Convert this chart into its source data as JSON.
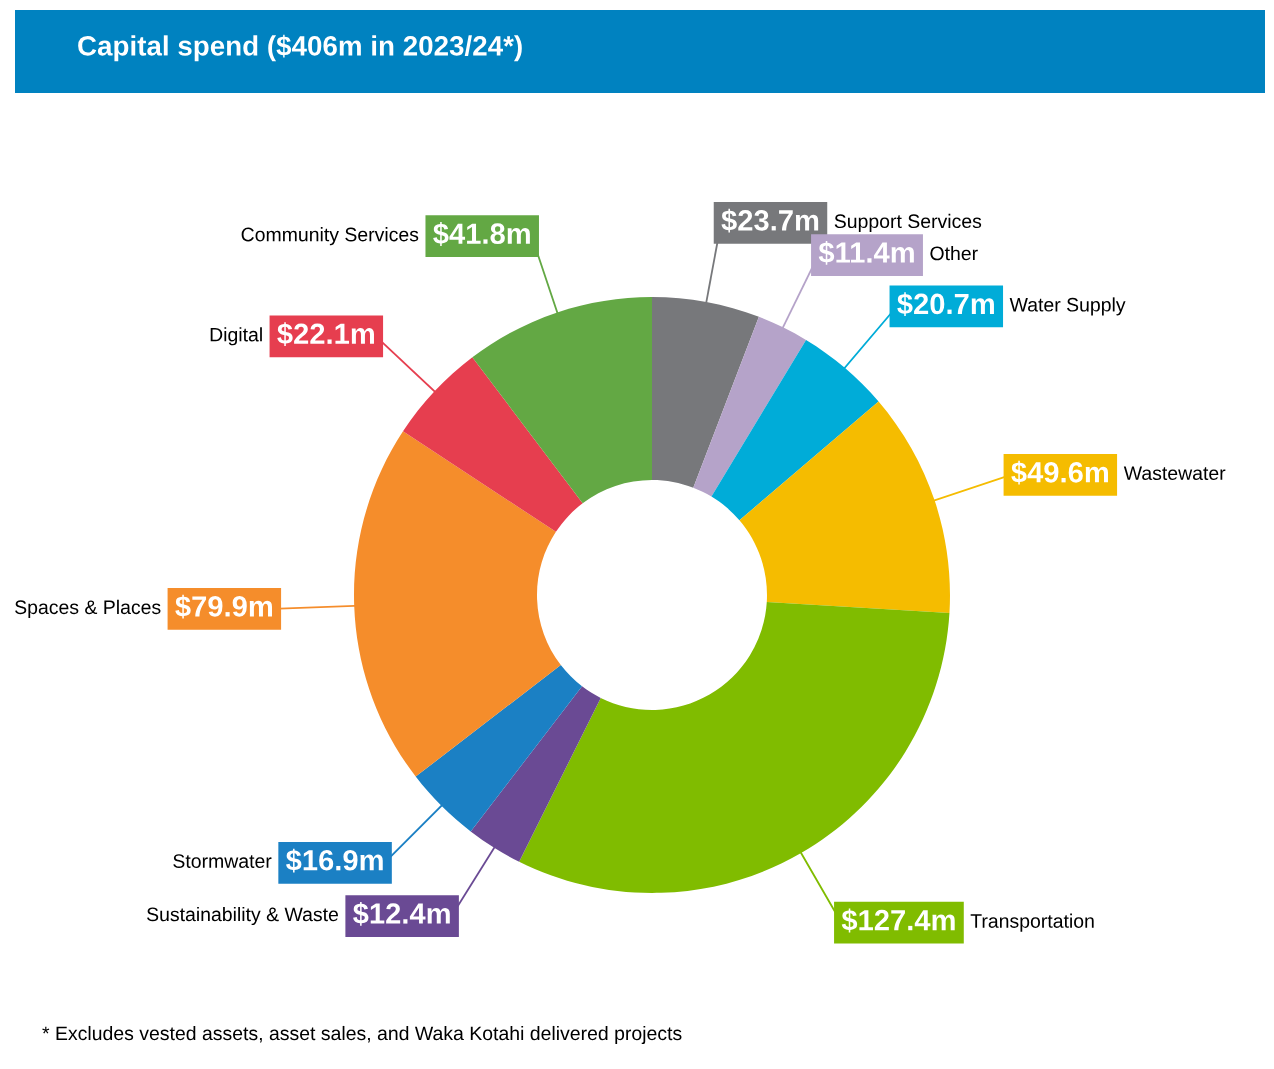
{
  "chart_data": {
    "type": "donut",
    "title": "Capital spend ($406m in 2023/24*)",
    "categories": [
      "Support Services",
      "Other",
      "Water Supply",
      "Wastewater",
      "Transportation",
      "Sustainability & Waste",
      "Stormwater",
      "Spaces & Places",
      "Digital",
      "Community Services"
    ],
    "values": [
      23.7,
      11.4,
      20.7,
      49.6,
      127.4,
      12.4,
      16.9,
      79.9,
      22.1,
      41.8
    ],
    "colors": [
      "#77787b",
      "#b5a3c9",
      "#00acd8",
      "#f5bc00",
      "#80bc00",
      "#6a4a94",
      "#1b80c4",
      "#f58d2b",
      "#e63e4f",
      "#63a844"
    ],
    "value_labels": [
      "$23.7m",
      "$11.4m",
      "$20.7m",
      "$49.6m",
      "$127.4m",
      "$12.4m",
      "$16.9m",
      "$79.9m",
      "$22.1m",
      "$41.8m"
    ],
    "annotations": [
      "* Excludes vested assets, asset sales, and Waka Kotahi delivered projects"
    ]
  }
}
